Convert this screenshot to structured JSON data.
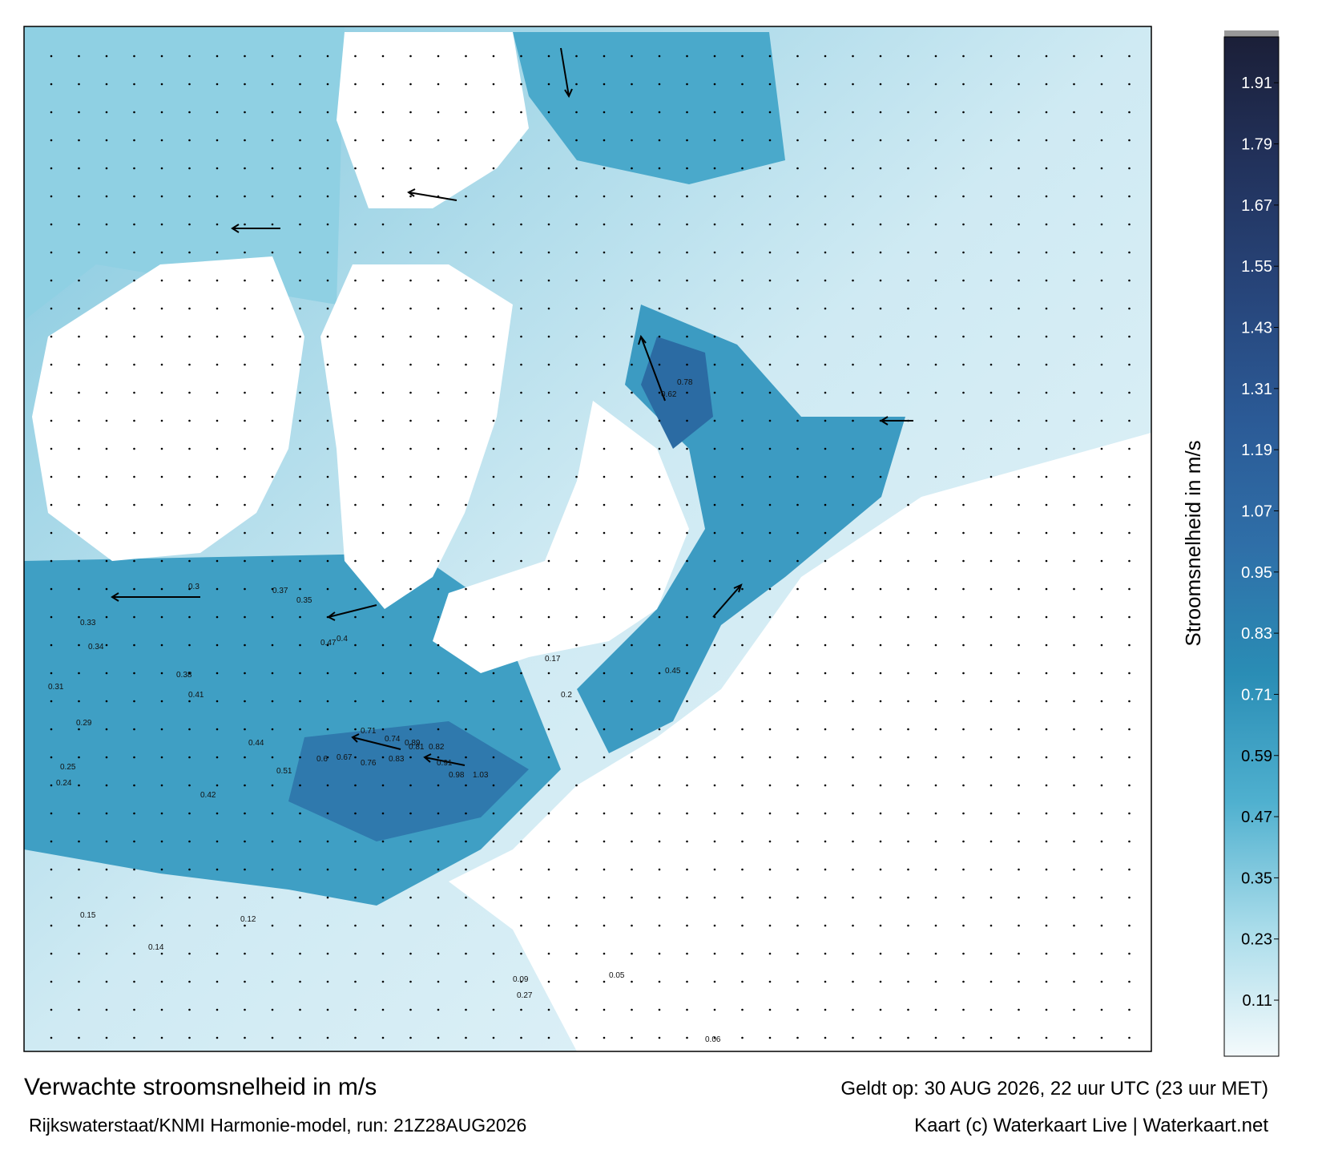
{
  "map": {
    "title": "Verwachte stroomsnelheid in m/s",
    "source": "Rijkswaterstaat/KNMI Harmonie-model, run: 21Z28AUG2026",
    "valid": "Geldt op: 30 AUG 2026, 22 uur UTC (23 uur MET)",
    "credit": "Kaart (c) Waterkaart Live | Waterkaart.net",
    "colorbar": {
      "label": "Stroomsnelheid in m/s",
      "clim": [
        0,
        2
      ],
      "ticks": [
        0.11,
        0.23,
        0.35,
        0.47,
        0.59,
        0.71,
        0.83,
        0.95,
        1.07,
        1.19,
        1.31,
        1.43,
        1.55,
        1.67,
        1.79,
        1.91
      ],
      "colors": [
        "#f4fafc",
        "#a9dcea",
        "#4fb0cf",
        "#2a8db5",
        "#2f6fa8",
        "#2b5a96",
        "#27457a",
        "#22325c",
        "#1b1f38"
      ]
    },
    "speed_labels": [
      0.33,
      0.34,
      0.31,
      0.29,
      0.25,
      0.24,
      0.38,
      0.41,
      0.42,
      0.47,
      0.4,
      0.44,
      0.51,
      0.6,
      0.67,
      0.76,
      0.83,
      0.89,
      0.91,
      0.98,
      1.03,
      0.81,
      0.82,
      0.71,
      0.74,
      0.45,
      0.62,
      0.78,
      0.35,
      0.3,
      0.15,
      0.14,
      0.12,
      0.09,
      0.06,
      0.05,
      0.17,
      0.2,
      0.27,
      0.37
    ]
  }
}
